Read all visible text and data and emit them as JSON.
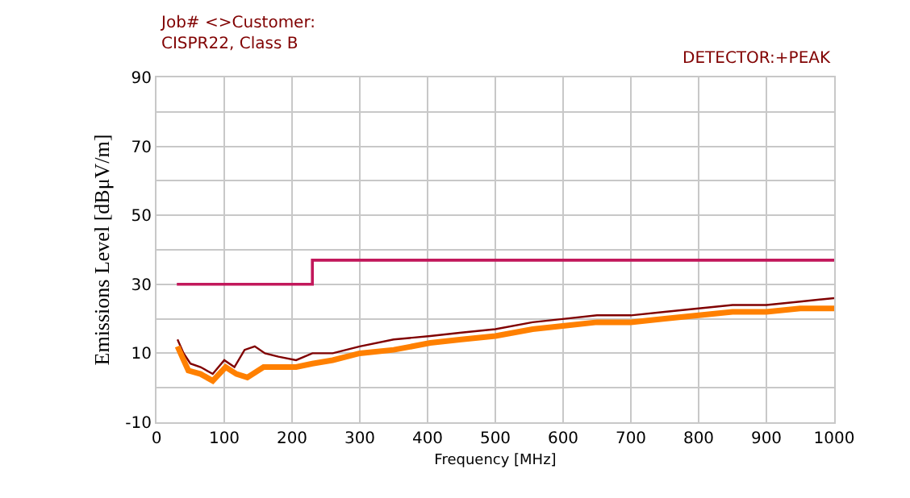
{
  "chart_data": {
    "type": "line",
    "title": "Job# <>Customer:\nCISPR22, Class B",
    "subtitle": "DETECTOR:+PEAK",
    "xlabel": "Frequency [MHz]",
    "ylabel": "Emissions Level [dBμV/m]",
    "xlim": [
      0,
      1000
    ],
    "xticks": [
      0,
      100,
      200,
      300,
      400,
      500,
      600,
      700,
      800,
      900,
      1000
    ],
    "ylim": [
      -10,
      90
    ],
    "yticks": [
      -10,
      {
        "value": 0,
        "label": null
      },
      10,
      {
        "value": 20,
        "label": null
      },
      30,
      {
        "value": 40,
        "label": null
      },
      50,
      {
        "value": 60,
        "label": null
      },
      70,
      {
        "value": 80,
        "label": null
      },
      90
    ],
    "grid": true,
    "marker": "none",
    "line_style": "solid",
    "series": [
      {
        "color": "#c2185b",
        "type": "step",
        "x": [
          30,
          230,
          230,
          1000
        ],
        "values": [
          30,
          30,
          37,
          37
        ]
      },
      {
        "color": "#800000",
        "x": [
          31,
          40,
          50,
          65,
          83,
          100,
          115,
          130,
          145,
          160,
          180,
          206,
          230,
          260,
          300,
          350,
          404,
          450,
          500,
          555,
          602,
          650,
          700,
          750,
          800,
          850,
          900,
          950,
          1000
        ],
        "values": [
          14,
          10,
          7,
          6,
          4,
          8,
          6,
          11,
          12,
          10,
          9,
          8,
          10,
          10,
          12,
          14,
          15,
          16,
          17,
          19,
          20,
          21,
          21,
          22,
          23,
          24,
          24,
          25,
          26
        ]
      },
      {
        "color": "#ff8000",
        "x": [
          31,
          40,
          47,
          65,
          83,
          102,
          118,
          134,
          158,
          180,
          206,
          230,
          260,
          300,
          350,
          404,
          450,
          500,
          555,
          602,
          650,
          700,
          750,
          800,
          850,
          900,
          950,
          1000
        ],
        "values": [
          12,
          8,
          5,
          4,
          2,
          6,
          4,
          3,
          6,
          6,
          6,
          7,
          8,
          10,
          11,
          13,
          14,
          15,
          17,
          18,
          19,
          19,
          20,
          21,
          22,
          22,
          23,
          23
        ]
      }
    ]
  }
}
